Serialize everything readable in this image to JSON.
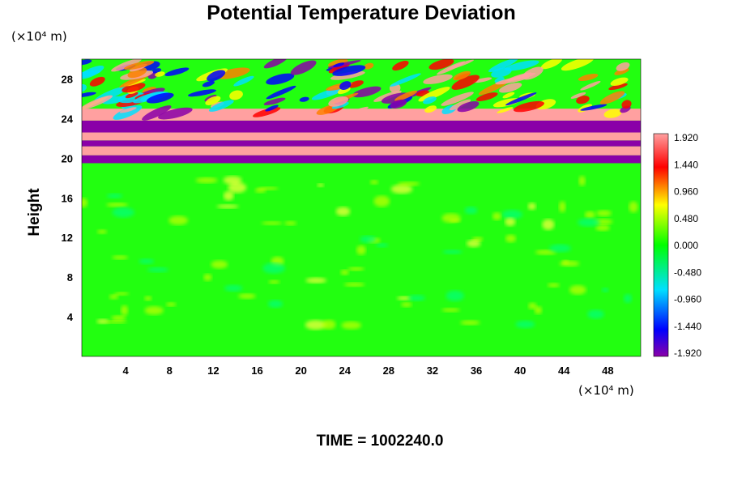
{
  "chart_data": {
    "type": "heatmap",
    "title": "Potential Temperature Deviation",
    "ylabel": "Height",
    "xlabel": "",
    "x_unit": "(×10⁴ m)",
    "y_unit": "(×10⁴ m)",
    "x_ticks": [
      4,
      8,
      12,
      16,
      20,
      24,
      28,
      32,
      36,
      40,
      44,
      48
    ],
    "y_ticks": [
      4,
      8,
      12,
      16,
      20,
      24,
      28
    ],
    "xlim": [
      0,
      51
    ],
    "ylim": [
      0,
      30
    ],
    "footer": "TIME = 1002240.0",
    "colorbar": {
      "labels": [
        "1.920",
        "1.440",
        "0.960",
        "0.480",
        "0.000",
        "-0.480",
        "-0.960",
        "-1.440",
        "-1.920"
      ],
      "range": [
        -1.92,
        1.92
      ],
      "stops": [
        "#8a00a8",
        "#0000ff",
        "#00e0ff",
        "#00ff00",
        "#ffff00",
        "#ff0000",
        "#ffa0a0"
      ]
    },
    "description_layers": [
      {
        "y_from": 0,
        "y_to": 19.5,
        "level": 0.0
      },
      {
        "y_from": 19.5,
        "y_to": 20.3,
        "level": -1.92
      },
      {
        "y_from": 20.3,
        "y_to": 21.2,
        "level": 1.92
      },
      {
        "y_from": 21.2,
        "y_to": 21.8,
        "level": -1.92
      },
      {
        "y_from": 21.8,
        "y_to": 22.6,
        "level": 1.92
      },
      {
        "y_from": 22.6,
        "y_to": 23.8,
        "level": -1.92
      },
      {
        "y_from": 23.8,
        "y_to": 25.0,
        "level": 1.92
      },
      {
        "y_from": 25.0,
        "y_to": 30.0,
        "level": 0.0
      }
    ]
  }
}
